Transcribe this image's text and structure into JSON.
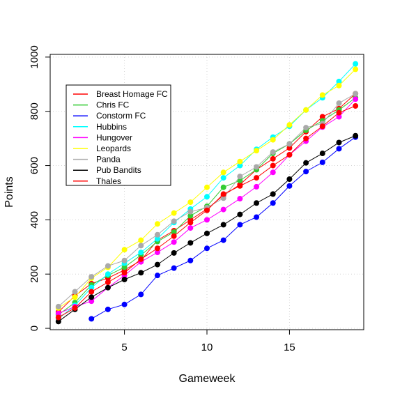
{
  "chart_data": {
    "type": "line",
    "xlabel": "Gameweek",
    "ylabel": "Points",
    "xlim": [
      0.5,
      19.5
    ],
    "ylim": [
      -5,
      1010
    ],
    "xticks": [
      5,
      10,
      15
    ],
    "yticks": [
      0,
      200,
      400,
      600,
      800,
      1000
    ],
    "grid": true,
    "legend_position": "top-left",
    "series": [
      {
        "name": "Breast Homage FC",
        "color": "#ff0000",
        "x": [
          1,
          2,
          3,
          4,
          5,
          6,
          7,
          8,
          9,
          10,
          11,
          12,
          13,
          14,
          15,
          16,
          17,
          18,
          19
        ],
        "values": [
          60,
          120,
          165,
          185,
          215,
          250,
          325,
          360,
          400,
          440,
          490,
          530,
          585,
          625,
          665,
          725,
          780,
          810,
          865
        ]
      },
      {
        "name": "Chris FC",
        "color": "#33cc33",
        "x": [
          1,
          2,
          3,
          4,
          5,
          6,
          7,
          8,
          9,
          10,
          11,
          12,
          13,
          14,
          15,
          16,
          17,
          18,
          19
        ],
        "values": [
          50,
          95,
          160,
          195,
          225,
          270,
          320,
          355,
          415,
          450,
          520,
          545,
          585,
          645,
          680,
          730,
          765,
          805,
          850
        ]
      },
      {
        "name": "Constorm FC",
        "color": "#0000ff",
        "x": [
          3,
          4,
          5,
          6,
          7,
          8,
          9,
          10,
          11,
          12,
          13,
          14,
          15,
          16,
          17,
          18,
          19
        ],
        "values": [
          35,
          70,
          88,
          125,
          195,
          222,
          250,
          295,
          325,
          382,
          410,
          462,
          525,
          578,
          612,
          662,
          705
        ]
      },
      {
        "name": "Hubbins",
        "color": "#00ffff",
        "x": [
          1,
          2,
          3,
          4,
          5,
          6,
          7,
          8,
          9,
          10,
          11,
          12,
          13,
          14,
          15,
          16,
          17,
          18,
          19
        ],
        "values": [
          35,
          85,
          150,
          200,
          240,
          280,
          330,
          390,
          440,
          485,
          555,
          600,
          660,
          705,
          745,
          805,
          850,
          910,
          975
        ]
      },
      {
        "name": "Hungover",
        "color": "#ff00ff",
        "x": [
          1,
          2,
          3,
          4,
          5,
          6,
          7,
          8,
          9,
          10,
          11,
          12,
          13,
          14,
          15,
          16,
          17,
          18,
          19
        ],
        "values": [
          55,
          80,
          100,
          150,
          195,
          245,
          280,
          318,
          370,
          400,
          438,
          478,
          522,
          575,
          640,
          690,
          742,
          780,
          845
        ]
      },
      {
        "name": "Leopards",
        "color": "#ffff00",
        "x": [
          1,
          2,
          3,
          4,
          5,
          6,
          7,
          8,
          9,
          10,
          11,
          12,
          13,
          14,
          15,
          16,
          17,
          18,
          19
        ],
        "values": [
          75,
          115,
          185,
          225,
          290,
          325,
          385,
          425,
          465,
          520,
          575,
          615,
          655,
          695,
          750,
          805,
          860,
          895,
          955
        ]
      },
      {
        "name": "Panda",
        "color": "#aaaaaa",
        "x": [
          1,
          2,
          3,
          4,
          5,
          6,
          7,
          8,
          9,
          10,
          11,
          12,
          13,
          14,
          15,
          16,
          17,
          18,
          19
        ],
        "values": [
          80,
          135,
          190,
          230,
          250,
          305,
          345,
          395,
          430,
          445,
          480,
          560,
          595,
          650,
          680,
          740,
          755,
          830,
          865
        ]
      },
      {
        "name": "Pub Bandits",
        "color": "#000000",
        "x": [
          1,
          2,
          3,
          4,
          5,
          6,
          7,
          8,
          9,
          10,
          11,
          12,
          13,
          14,
          15,
          16,
          17,
          18,
          19
        ],
        "values": [
          25,
          70,
          115,
          150,
          180,
          205,
          235,
          278,
          315,
          350,
          382,
          420,
          462,
          495,
          550,
          610,
          645,
          685,
          710
        ]
      },
      {
        "name": "Thales",
        "color": "#ff0000",
        "x": [
          1,
          2,
          3,
          4,
          5,
          6,
          7,
          8,
          9,
          10,
          11,
          12,
          13,
          14,
          15,
          16,
          17,
          18,
          19
        ],
        "values": [
          40,
          75,
          135,
          170,
          205,
          255,
          295,
          340,
          390,
          435,
          495,
          525,
          555,
          600,
          640,
          700,
          745,
          795,
          820
        ]
      }
    ]
  }
}
